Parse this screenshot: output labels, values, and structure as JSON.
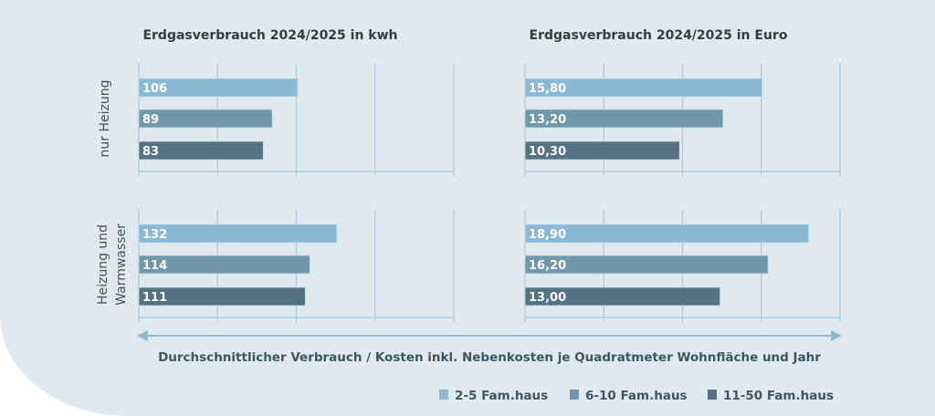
{
  "chart_data": [
    {
      "type": "bar",
      "title": "Erdgasverbrauch 2024/2025 in kwh",
      "groups": [
        "nur Heizung",
        "Heizung und Warmwasser"
      ],
      "series": [
        {
          "name": "2-5 Fam.haus",
          "values": [
            106,
            132
          ],
          "labels": [
            "106",
            "132"
          ]
        },
        {
          "name": "6-10 Fam.haus",
          "values": [
            89,
            114
          ],
          "labels": [
            "89",
            "114"
          ]
        },
        {
          "name": "11-50 Fam.haus",
          "values": [
            83,
            111
          ],
          "labels": [
            "83",
            "111"
          ]
        }
      ],
      "xlim": [
        0,
        210
      ],
      "grid": true
    },
    {
      "type": "bar",
      "title": "Erdgasverbrauch 2024/2025 in Euro",
      "groups": [
        "nur Heizung",
        "Heizung und Warmwasser"
      ],
      "series": [
        {
          "name": "2-5 Fam.haus",
          "values": [
            15.8,
            18.9
          ],
          "labels": [
            "15,80",
            "18,90"
          ]
        },
        {
          "name": "6-10 Fam.haus",
          "values": [
            13.2,
            16.2
          ],
          "labels": [
            "13,20",
            "16,20"
          ]
        },
        {
          "name": "11-50 Fam.haus",
          "values": [
            10.3,
            13.0
          ],
          "labels": [
            "10,30",
            "13,00"
          ]
        }
      ],
      "xlim": [
        0,
        21
      ],
      "grid": true
    }
  ],
  "row_labels": [
    "nur Heizung",
    "Heizung und",
    "Warmwasser"
  ],
  "xlabel": "Durchschnittlicher Verbrauch / Kosten inkl. Nebenkosten je Quadratmeter Wohnfläche und Jahr",
  "legend": {
    "position": "bottom-right",
    "items": [
      {
        "name": "2-5 Fam.haus",
        "color": "#8bb9d4"
      },
      {
        "name": "6-10 Fam.haus",
        "color": "#6f99ab"
      },
      {
        "name": "11-50 Fam.haus",
        "color": "#537282"
      }
    ]
  },
  "colors": {
    "background": "#e0e9ef",
    "grid": "#a9cadc",
    "arrow": "#8bb9d4"
  }
}
